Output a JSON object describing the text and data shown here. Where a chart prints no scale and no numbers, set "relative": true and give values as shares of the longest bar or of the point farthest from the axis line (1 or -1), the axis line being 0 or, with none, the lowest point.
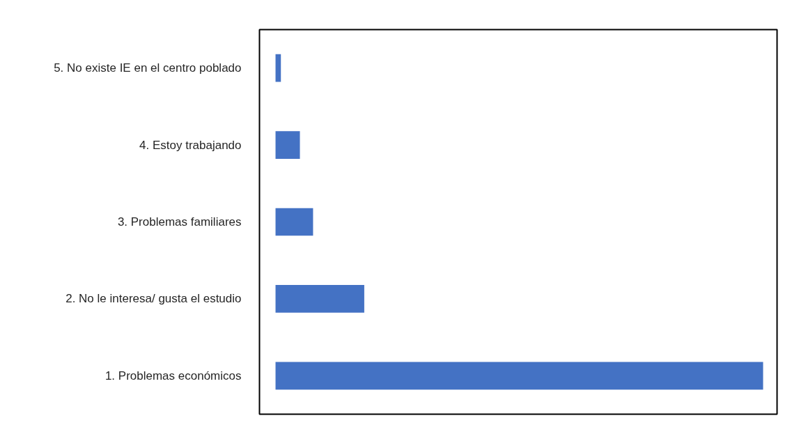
{
  "chart_data": {
    "type": "bar",
    "orientation": "horizontal",
    "relative": true,
    "categories": [
      "5. No existe IE en el centro poblado",
      "4. Estoy trabajando",
      "3. Problemas familiares",
      "2. No le interesa/ gusta el estudio",
      "1. Problemas económicos"
    ],
    "values": [
      0.011,
      0.05,
      0.077,
      0.182,
      1
    ],
    "color": "#4472c4",
    "tick_labels": "y"
  }
}
